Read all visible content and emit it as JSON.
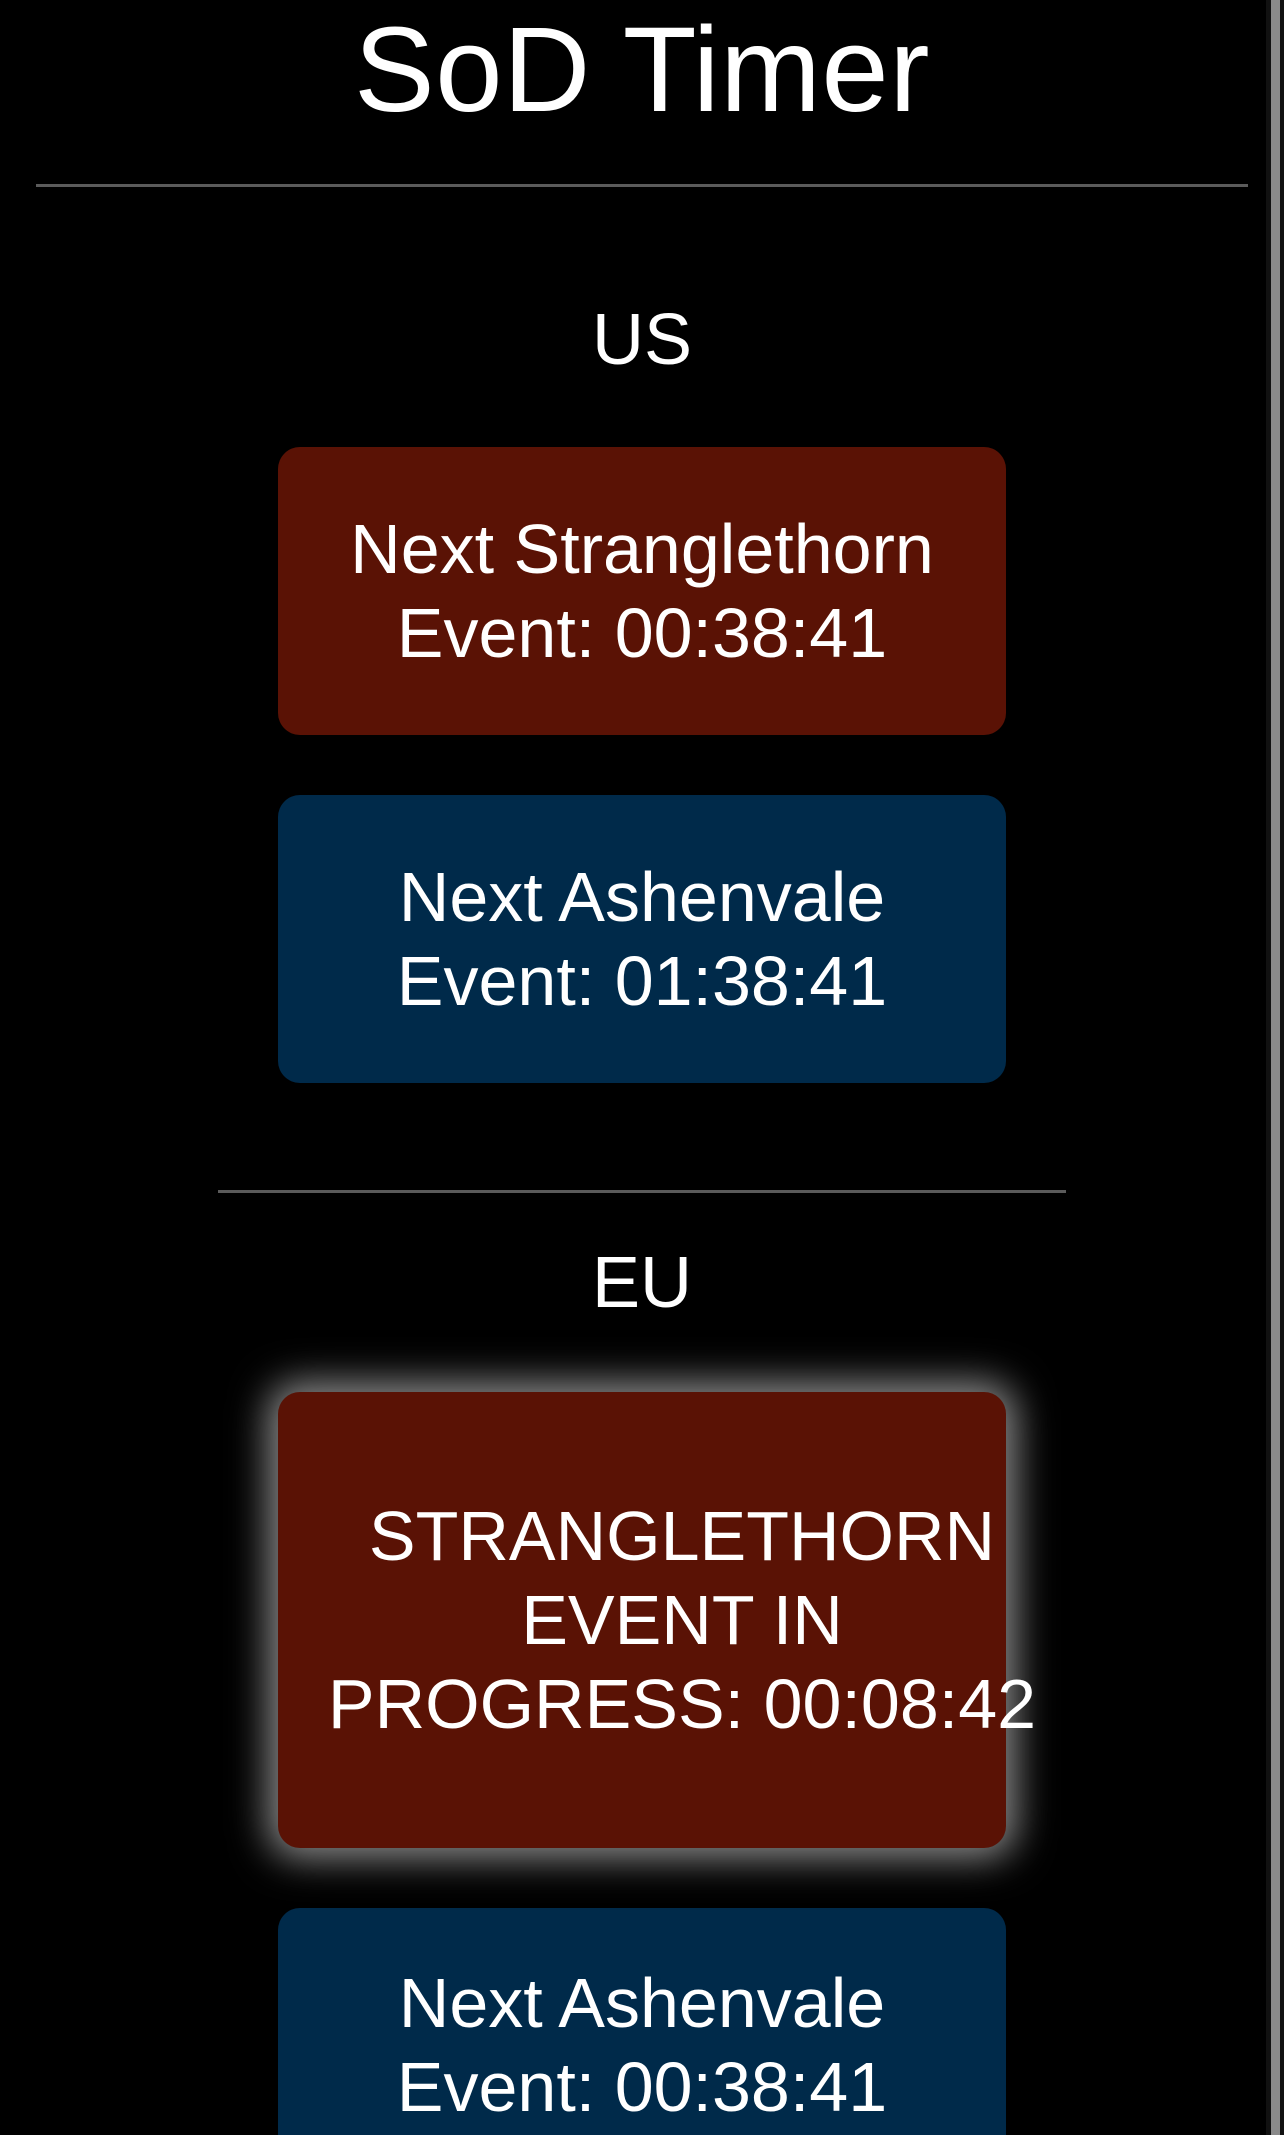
{
  "app": {
    "title": "SoD Timer"
  },
  "regions": [
    {
      "name": "US",
      "events": [
        {
          "label": "Next Stranglethorn Event: 00:38:41",
          "kind": "stranglethorn",
          "active": false
        },
        {
          "label": "Next Ashenvale Event: 01:38:41",
          "kind": "ashenvale",
          "active": false
        }
      ]
    },
    {
      "name": "EU",
      "events": [
        {
          "label": "STRANGLETHORN EVENT IN PROGRESS: 00:08:42",
          "kind": "stranglethorn",
          "active": true
        },
        {
          "label": "Next Ashenvale Event: 00:38:41",
          "kind": "ashenvale",
          "active": false
        }
      ]
    }
  ],
  "colors": {
    "background": "#000000",
    "stranglethorn": "#5a1205",
    "ashenvale": "#002a4a",
    "divider": "#5b5b5b",
    "text": "#ffffff",
    "active_glow": "#ffffff"
  }
}
